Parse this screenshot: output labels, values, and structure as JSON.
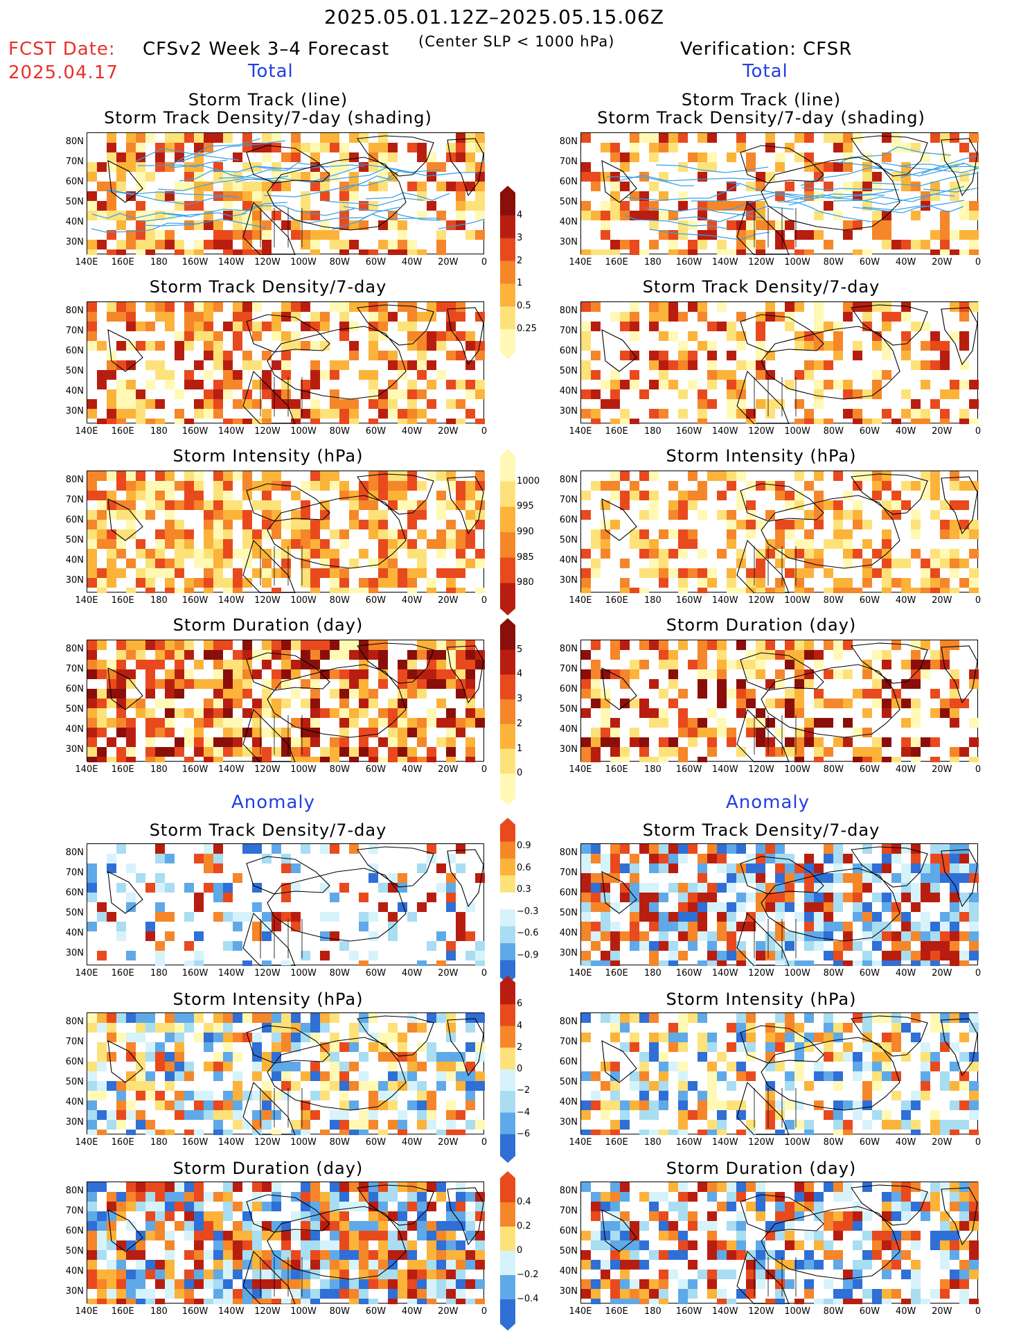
{
  "header": {
    "date_range": "2025.05.01.12Z–2025.05.15.06Z",
    "fcst_label": "FCST Date:",
    "fcst_date": "2025.04.17",
    "left_title": "CFSv2 Week 3–4 Forecast",
    "slp_note": "(Center SLP < 1000 hPa)",
    "right_title": "Verification: CFSR",
    "total_label": "Total",
    "anomaly_label": "Anomaly"
  },
  "axes": {
    "lat_labels": [
      "80N",
      "70N",
      "60N",
      "50N",
      "40N",
      "30N"
    ],
    "lon_labels": [
      "140E",
      "160E",
      "180",
      "160W",
      "140W",
      "120W",
      "100W",
      "80W",
      "60W",
      "40W",
      "20W",
      "0"
    ]
  },
  "panels": {
    "row1_title_a": "Storm Track (line)",
    "row1_title_b": "Storm Track Density/7-day (shading)",
    "density_title": "Storm Track Density/7-day",
    "intensity_title": "Storm Intensity (hPa)",
    "duration_title": "Storm Duration (day)"
  },
  "colorbars": {
    "density": [
      "4",
      "3",
      "2",
      "1",
      "0.5",
      "0.25"
    ],
    "intensity": [
      "1000",
      "995",
      "990",
      "985",
      "980"
    ],
    "duration": [
      "5",
      "4",
      "3",
      "2",
      "1",
      "0"
    ],
    "density_anom": [
      "0.9",
      "0.6",
      "0.3",
      "−0.3",
      "−0.6",
      "−0.9"
    ],
    "intensity_anom": [
      "6",
      "4",
      "2",
      "0",
      "−2",
      "−4",
      "−6"
    ],
    "duration_anom": [
      "0.4",
      "0.2",
      "0",
      "−0.2",
      "−0.4"
    ]
  },
  "colors": {
    "warm": [
      "#fff9b5",
      "#fde27a",
      "#fbb33a",
      "#f5862a",
      "#e84a1e",
      "#b81e10",
      "#8a0f0a"
    ],
    "cool": [
      "#d6f3fb",
      "#a8ddf2",
      "#5fa9e8",
      "#2f6fd6"
    ],
    "track_line": "#3aa0e6"
  }
}
